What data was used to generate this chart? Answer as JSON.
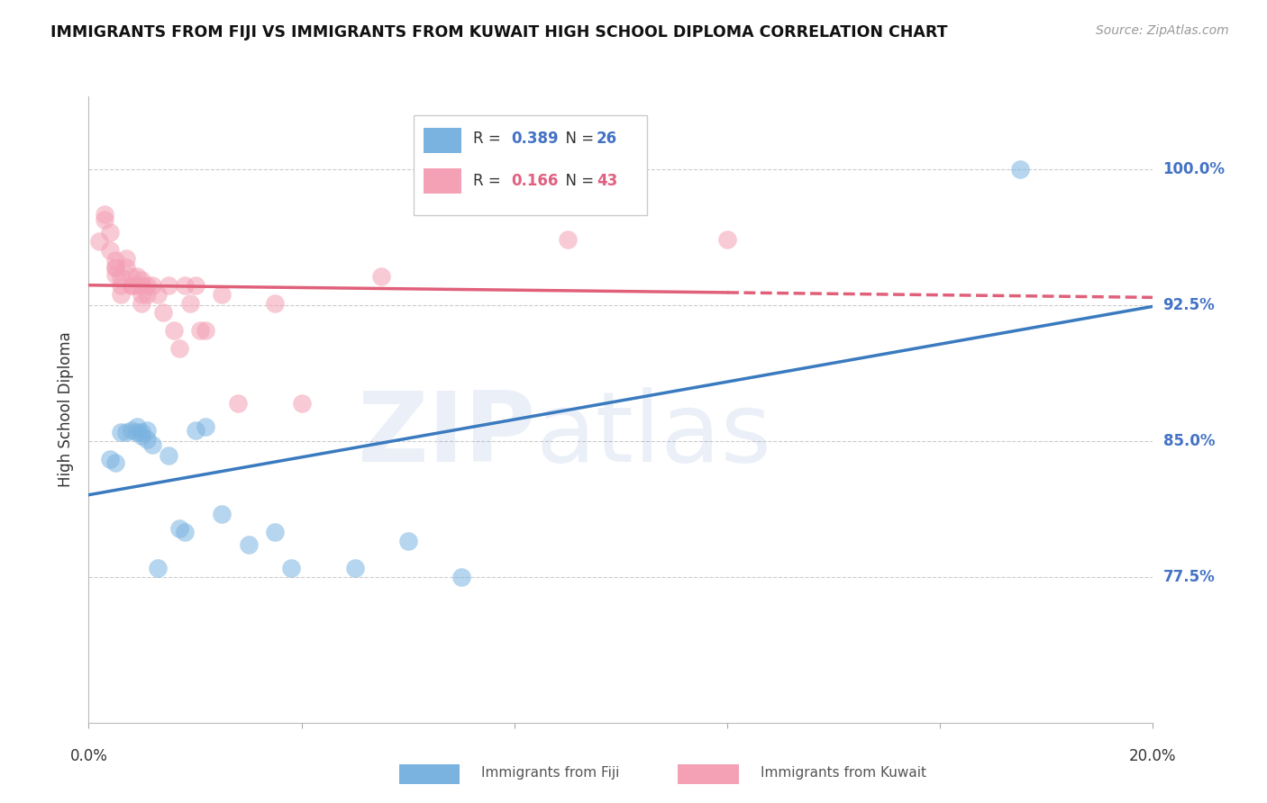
{
  "title": "IMMIGRANTS FROM FIJI VS IMMIGRANTS FROM KUWAIT HIGH SCHOOL DIPLOMA CORRELATION CHART",
  "source": "Source: ZipAtlas.com",
  "ylabel": "High School Diploma",
  "ytick_labels": [
    "77.5%",
    "85.0%",
    "92.5%",
    "100.0%"
  ],
  "ytick_values": [
    0.775,
    0.85,
    0.925,
    1.0
  ],
  "xlim": [
    0.0,
    0.2
  ],
  "ylim": [
    0.695,
    1.04
  ],
  "fiji_R": 0.389,
  "fiji_N": 26,
  "kuwait_R": 0.166,
  "kuwait_N": 43,
  "fiji_color": "#7ab3e0",
  "kuwait_color": "#f4a0b5",
  "fiji_line_color": "#3a7abf",
  "kuwait_line_color": "#e0607a",
  "fiji_x": [
    0.004,
    0.005,
    0.006,
    0.007,
    0.008,
    0.009,
    0.009,
    0.01,
    0.01,
    0.011,
    0.011,
    0.012,
    0.013,
    0.015,
    0.017,
    0.018,
    0.02,
    0.022,
    0.025,
    0.03,
    0.035,
    0.038,
    0.05,
    0.06,
    0.07,
    0.175
  ],
  "fiji_y": [
    0.84,
    0.838,
    0.855,
    0.855,
    0.856,
    0.855,
    0.858,
    0.855,
    0.853,
    0.856,
    0.851,
    0.848,
    0.78,
    0.842,
    0.802,
    0.8,
    0.856,
    0.858,
    0.81,
    0.793,
    0.8,
    0.78,
    0.78,
    0.795,
    0.775,
    1.0
  ],
  "kuwait_x": [
    0.002,
    0.003,
    0.003,
    0.004,
    0.004,
    0.005,
    0.005,
    0.005,
    0.005,
    0.006,
    0.006,
    0.006,
    0.007,
    0.007,
    0.008,
    0.008,
    0.008,
    0.009,
    0.009,
    0.01,
    0.01,
    0.01,
    0.01,
    0.011,
    0.011,
    0.012,
    0.013,
    0.014,
    0.015,
    0.016,
    0.017,
    0.018,
    0.019,
    0.02,
    0.021,
    0.022,
    0.025,
    0.028,
    0.035,
    0.04,
    0.055,
    0.09,
    0.12
  ],
  "kuwait_y": [
    0.96,
    0.972,
    0.975,
    0.955,
    0.965,
    0.942,
    0.946,
    0.95,
    0.946,
    0.941,
    0.936,
    0.931,
    0.946,
    0.951,
    0.941,
    0.936,
    0.936,
    0.936,
    0.941,
    0.931,
    0.936,
    0.939,
    0.926,
    0.931,
    0.936,
    0.936,
    0.931,
    0.921,
    0.936,
    0.911,
    0.901,
    0.936,
    0.926,
    0.936,
    0.911,
    0.911,
    0.931,
    0.871,
    0.926,
    0.871,
    0.941,
    0.961,
    0.961
  ],
  "legend_fiji_label": "R = 0.389   N = 26",
  "legend_kuwait_label": "R = 0.166   N = 43",
  "bottom_legend_fiji": "Immigrants from Fiji",
  "bottom_legend_kuwait": "Immigrants from Kuwait"
}
